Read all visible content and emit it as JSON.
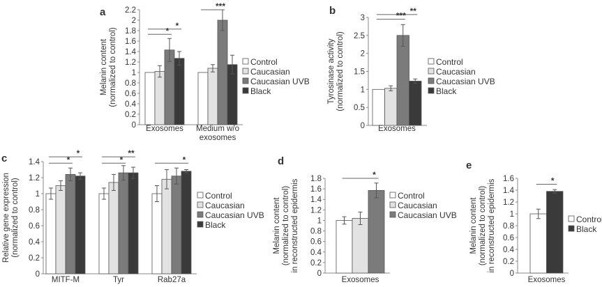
{
  "colors": {
    "Control": "#ffffff",
    "Caucasian": "#e2e2e2",
    "Caucasian UVB": "#7b7b7b",
    "Black": "#3a3a3a",
    "axis": "#888888"
  },
  "chart_data": [
    {
      "panel": "a",
      "type": "bar",
      "ylabel": [
        "Melanin content",
        "(normalized to control)"
      ],
      "ylim": [
        0,
        2.2
      ],
      "yticks": [
        0,
        0.2,
        0.4,
        0.6,
        0.8,
        1,
        1.2,
        1.4,
        1.6,
        1.8,
        2,
        2.2
      ],
      "categories": [
        [
          "Exosomes"
        ],
        [
          "Medium w/o",
          "exosomes"
        ]
      ],
      "series": [
        {
          "name": "Control",
          "values": [
            1,
            1
          ],
          "errors": [
            0,
            0
          ]
        },
        {
          "name": "Caucasian",
          "values": [
            1.02,
            1.08
          ],
          "errors": [
            0.11,
            0.07
          ]
        },
        {
          "name": "Caucasian UVB",
          "values": [
            1.43,
            2.0
          ],
          "errors": [
            0.22,
            0.2
          ]
        },
        {
          "name": "Black",
          "values": [
            1.27,
            1.15
          ],
          "errors": [
            0.13,
            0.18
          ]
        }
      ],
      "significance": [
        {
          "group": 0,
          "from": 0,
          "to": 3,
          "y": 1.83,
          "label": "*"
        },
        {
          "group": 0,
          "from": 0,
          "to": 2,
          "y": 1.73,
          "label": "*"
        },
        {
          "group": 1,
          "from": 0,
          "to": 2,
          "y": 2.2,
          "label": "***"
        }
      ],
      "legend": [
        "Control",
        "Caucasian",
        "Caucasian UVB",
        "Black"
      ],
      "legend_position": "right"
    },
    {
      "panel": "b",
      "type": "bar",
      "ylabel": [
        "Tyrosinase activity",
        "(normalized to control)"
      ],
      "ylim": [
        0,
        3
      ],
      "yticks": [
        0,
        0.5,
        1,
        1.5,
        2,
        2.5,
        3
      ],
      "categories": [
        [
          "Exosomes"
        ]
      ],
      "series": [
        {
          "name": "Control",
          "values": [
            1
          ],
          "errors": [
            0
          ]
        },
        {
          "name": "Caucasian",
          "values": [
            1.03
          ],
          "errors": [
            0.07
          ]
        },
        {
          "name": "Caucasian UVB",
          "values": [
            2.5
          ],
          "errors": [
            0.3
          ]
        },
        {
          "name": "Black",
          "values": [
            1.23
          ],
          "errors": [
            0.06
          ]
        }
      ],
      "significance": [
        {
          "group": 0,
          "from": 0,
          "to": 3,
          "y": 3.08,
          "label": "**"
        },
        {
          "group": 0,
          "from": 0,
          "to": 2,
          "y": 2.95,
          "label": "***"
        }
      ],
      "legend": [
        "Control",
        "Caucasian",
        "Caucasian UVB",
        "Black"
      ],
      "legend_position": "right"
    },
    {
      "panel": "c",
      "type": "bar",
      "ylabel": [
        "Relative gene expression",
        "(normalized to control)"
      ],
      "ylim": [
        0,
        1.4
      ],
      "yticks": [
        0,
        0.2,
        0.4,
        0.6,
        0.8,
        1,
        1.2,
        1.4
      ],
      "categories": [
        [
          "MITF-M"
        ],
        [
          "Tyr"
        ],
        [
          "Rab27a"
        ]
      ],
      "series": [
        {
          "name": "Control",
          "values": [
            1,
            1,
            1
          ],
          "errors": [
            0.07,
            0.07,
            0.1
          ]
        },
        {
          "name": "Caucasian",
          "values": [
            1.1,
            1.14,
            1.18
          ],
          "errors": [
            0.06,
            0.1,
            0.12
          ]
        },
        {
          "name": "Caucasian UVB",
          "values": [
            1.24,
            1.26,
            1.22
          ],
          "errors": [
            0.08,
            0.09,
            0.1
          ]
        },
        {
          "name": "Black",
          "values": [
            1.22,
            1.26,
            1.28
          ],
          "errors": [
            0.04,
            0.07,
            0.02
          ]
        }
      ],
      "significance": [
        {
          "group": 0,
          "from": 0,
          "to": 3,
          "y": 1.46,
          "label": "*"
        },
        {
          "group": 0,
          "from": 0,
          "to": 2,
          "y": 1.38,
          "label": "*"
        },
        {
          "group": 1,
          "from": 0,
          "to": 3,
          "y": 1.46,
          "label": "**"
        },
        {
          "group": 1,
          "from": 0,
          "to": 2,
          "y": 1.38,
          "label": "*"
        },
        {
          "group": 2,
          "from": 0,
          "to": 3,
          "y": 1.38,
          "label": "*"
        }
      ],
      "legend": [
        "Control",
        "Caucasian",
        "Caucasian UVB",
        "Black"
      ],
      "legend_position": "right"
    },
    {
      "panel": "d",
      "type": "bar",
      "ylabel": [
        "Melanin content",
        "(normalized to control)",
        "in reconstructed epidermis"
      ],
      "ylim": [
        0,
        1.8
      ],
      "yticks": [
        0,
        0.2,
        0.4,
        0.6,
        0.8,
        1,
        1.2,
        1.4,
        1.6,
        1.8
      ],
      "categories": [
        [
          "Exosomes"
        ]
      ],
      "series": [
        {
          "name": "Control",
          "values": [
            1
          ],
          "errors": [
            0.07
          ]
        },
        {
          "name": "Caucasian",
          "values": [
            1.04
          ],
          "errors": [
            0.12
          ]
        },
        {
          "name": "Caucasian UVB",
          "values": [
            1.57
          ],
          "errors": [
            0.14
          ]
        }
      ],
      "significance": [
        {
          "group": 0,
          "from": 0,
          "to": 2,
          "y": 1.8,
          "label": "*"
        }
      ],
      "legend": [
        "Control",
        "Caucasian",
        "Caucasian UVB"
      ],
      "legend_position": "right"
    },
    {
      "panel": "e",
      "type": "bar",
      "ylabel": [
        "Melanin content",
        "(normalized to control)",
        "in reconstructed epidermis"
      ],
      "ylim": [
        0,
        1.6
      ],
      "yticks": [
        0,
        0.2,
        0.4,
        0.6,
        0.8,
        1,
        1.2,
        1.4,
        1.6
      ],
      "categories": [
        [
          "Exosomes"
        ]
      ],
      "series": [
        {
          "name": "Control",
          "values": [
            1
          ],
          "errors": [
            0.08
          ]
        },
        {
          "name": "Black",
          "values": [
            1.38
          ],
          "errors": [
            0.03
          ]
        }
      ],
      "significance": [
        {
          "group": 0,
          "from": 0,
          "to": 1,
          "y": 1.5,
          "label": "*"
        }
      ],
      "legend": [
        "Control",
        "Black"
      ],
      "legend_position": "right"
    }
  ]
}
